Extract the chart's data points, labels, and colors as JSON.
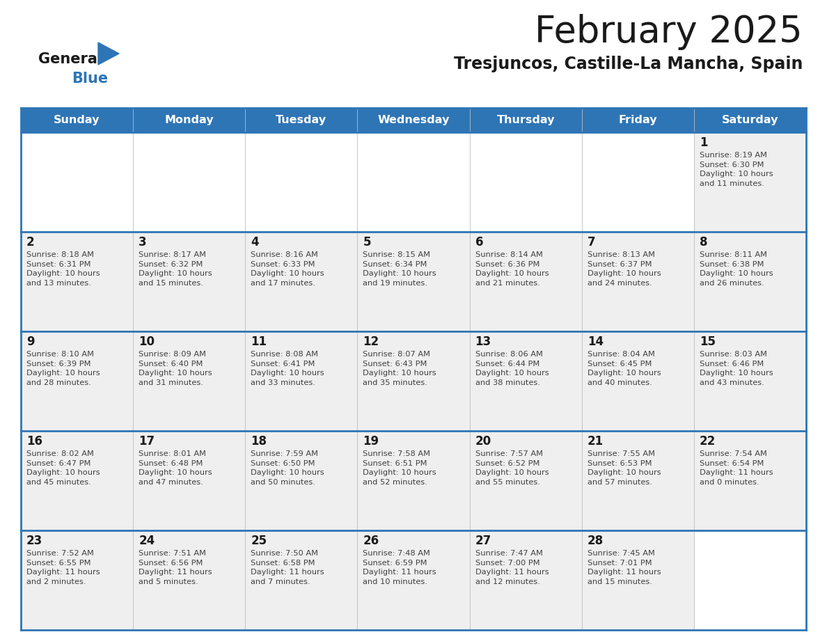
{
  "title": "February 2025",
  "subtitle": "Tresjuncos, Castille-La Mancha, Spain",
  "header_color": "#2E75B6",
  "header_text_color": "#FFFFFF",
  "cell_bg_color": "#EFEFEF",
  "cell_bg_empty": "#FFFFFF",
  "border_color": "#2E75B6",
  "row_border_color": "#2E75B6",
  "day_headers": [
    "Sunday",
    "Monday",
    "Tuesday",
    "Wednesday",
    "Thursday",
    "Friday",
    "Saturday"
  ],
  "title_color": "#1a1a1a",
  "subtitle_color": "#1a1a1a",
  "day_num_color": "#1a1a1a",
  "cell_text_color": "#404040",
  "title_fontsize": 38,
  "subtitle_fontsize": 17,
  "header_fontsize": 11.5,
  "day_num_fontsize": 12,
  "cell_text_fontsize": 8.2,
  "logo_general_color": "#1a1a1a",
  "logo_blue_color": "#2E75B6",
  "logo_triangle_color": "#2E75B6",
  "weeks": [
    [
      {
        "day": null,
        "info": null
      },
      {
        "day": null,
        "info": null
      },
      {
        "day": null,
        "info": null
      },
      {
        "day": null,
        "info": null
      },
      {
        "day": null,
        "info": null
      },
      {
        "day": null,
        "info": null
      },
      {
        "day": 1,
        "info": "Sunrise: 8:19 AM\nSunset: 6:30 PM\nDaylight: 10 hours\nand 11 minutes."
      }
    ],
    [
      {
        "day": 2,
        "info": "Sunrise: 8:18 AM\nSunset: 6:31 PM\nDaylight: 10 hours\nand 13 minutes."
      },
      {
        "day": 3,
        "info": "Sunrise: 8:17 AM\nSunset: 6:32 PM\nDaylight: 10 hours\nand 15 minutes."
      },
      {
        "day": 4,
        "info": "Sunrise: 8:16 AM\nSunset: 6:33 PM\nDaylight: 10 hours\nand 17 minutes."
      },
      {
        "day": 5,
        "info": "Sunrise: 8:15 AM\nSunset: 6:34 PM\nDaylight: 10 hours\nand 19 minutes."
      },
      {
        "day": 6,
        "info": "Sunrise: 8:14 AM\nSunset: 6:36 PM\nDaylight: 10 hours\nand 21 minutes."
      },
      {
        "day": 7,
        "info": "Sunrise: 8:13 AM\nSunset: 6:37 PM\nDaylight: 10 hours\nand 24 minutes."
      },
      {
        "day": 8,
        "info": "Sunrise: 8:11 AM\nSunset: 6:38 PM\nDaylight: 10 hours\nand 26 minutes."
      }
    ],
    [
      {
        "day": 9,
        "info": "Sunrise: 8:10 AM\nSunset: 6:39 PM\nDaylight: 10 hours\nand 28 minutes."
      },
      {
        "day": 10,
        "info": "Sunrise: 8:09 AM\nSunset: 6:40 PM\nDaylight: 10 hours\nand 31 minutes."
      },
      {
        "day": 11,
        "info": "Sunrise: 8:08 AM\nSunset: 6:41 PM\nDaylight: 10 hours\nand 33 minutes."
      },
      {
        "day": 12,
        "info": "Sunrise: 8:07 AM\nSunset: 6:43 PM\nDaylight: 10 hours\nand 35 minutes."
      },
      {
        "day": 13,
        "info": "Sunrise: 8:06 AM\nSunset: 6:44 PM\nDaylight: 10 hours\nand 38 minutes."
      },
      {
        "day": 14,
        "info": "Sunrise: 8:04 AM\nSunset: 6:45 PM\nDaylight: 10 hours\nand 40 minutes."
      },
      {
        "day": 15,
        "info": "Sunrise: 8:03 AM\nSunset: 6:46 PM\nDaylight: 10 hours\nand 43 minutes."
      }
    ],
    [
      {
        "day": 16,
        "info": "Sunrise: 8:02 AM\nSunset: 6:47 PM\nDaylight: 10 hours\nand 45 minutes."
      },
      {
        "day": 17,
        "info": "Sunrise: 8:01 AM\nSunset: 6:48 PM\nDaylight: 10 hours\nand 47 minutes."
      },
      {
        "day": 18,
        "info": "Sunrise: 7:59 AM\nSunset: 6:50 PM\nDaylight: 10 hours\nand 50 minutes."
      },
      {
        "day": 19,
        "info": "Sunrise: 7:58 AM\nSunset: 6:51 PM\nDaylight: 10 hours\nand 52 minutes."
      },
      {
        "day": 20,
        "info": "Sunrise: 7:57 AM\nSunset: 6:52 PM\nDaylight: 10 hours\nand 55 minutes."
      },
      {
        "day": 21,
        "info": "Sunrise: 7:55 AM\nSunset: 6:53 PM\nDaylight: 10 hours\nand 57 minutes."
      },
      {
        "day": 22,
        "info": "Sunrise: 7:54 AM\nSunset: 6:54 PM\nDaylight: 11 hours\nand 0 minutes."
      }
    ],
    [
      {
        "day": 23,
        "info": "Sunrise: 7:52 AM\nSunset: 6:55 PM\nDaylight: 11 hours\nand 2 minutes."
      },
      {
        "day": 24,
        "info": "Sunrise: 7:51 AM\nSunset: 6:56 PM\nDaylight: 11 hours\nand 5 minutes."
      },
      {
        "day": 25,
        "info": "Sunrise: 7:50 AM\nSunset: 6:58 PM\nDaylight: 11 hours\nand 7 minutes."
      },
      {
        "day": 26,
        "info": "Sunrise: 7:48 AM\nSunset: 6:59 PM\nDaylight: 11 hours\nand 10 minutes."
      },
      {
        "day": 27,
        "info": "Sunrise: 7:47 AM\nSunset: 7:00 PM\nDaylight: 11 hours\nand 12 minutes."
      },
      {
        "day": 28,
        "info": "Sunrise: 7:45 AM\nSunset: 7:01 PM\nDaylight: 11 hours\nand 15 minutes."
      },
      {
        "day": null,
        "info": null
      }
    ]
  ]
}
